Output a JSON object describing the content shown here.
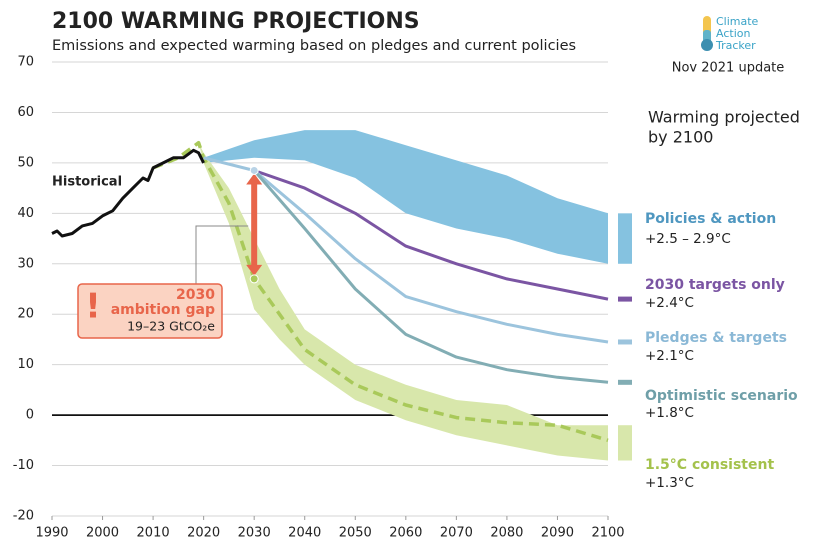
{
  "chart_data": {
    "type": "line",
    "title": "2100 WARMING PROJECTIONS",
    "subtitle": "Emissions and expected warming based on pledges and current policies",
    "logo": [
      "Climate",
      "Action",
      "Tracker"
    ],
    "update": "Nov 2021 update",
    "legend_title": [
      "Warming projected",
      "by 2100"
    ],
    "xlim": [
      1990,
      2100
    ],
    "xticks": [
      1990,
      2000,
      2010,
      2020,
      2030,
      2040,
      2050,
      2060,
      2070,
      2080,
      2090,
      2100
    ],
    "ylim": [
      -20,
      70
    ],
    "yticks": [
      -20,
      -10,
      0,
      10,
      20,
      30,
      40,
      50,
      60,
      70
    ],
    "grid": true,
    "annotation": {
      "year": "2030",
      "label": "ambition gap",
      "range": "19–23 GtCO₂e",
      "icon": "!"
    },
    "series": [
      {
        "name": "Historical",
        "kind": "line",
        "color": "#111111",
        "x": [
          1990,
          1991,
          1992,
          1994,
          1996,
          1998,
          2000,
          2002,
          2004,
          2006,
          2008,
          2009,
          2010,
          2012,
          2014,
          2016,
          2018,
          2019,
          2020
        ],
        "values": [
          36,
          36.5,
          35.5,
          36,
          37.5,
          38,
          39.5,
          40.5,
          43,
          45,
          47,
          46.5,
          49,
          50,
          51,
          51,
          52.5,
          52,
          50
        ]
      },
      {
        "name": "Policies & action",
        "warming": "+2.5 – 2.9°C",
        "kind": "band",
        "color": "#85c2e0",
        "label_color": "#4f97c0",
        "x": [
          2020,
          2030,
          2040,
          2050,
          2060,
          2070,
          2080,
          2090,
          2100
        ],
        "upper": [
          51,
          54.5,
          56.5,
          56.5,
          53.5,
          50.5,
          47.5,
          43,
          40
        ],
        "lower": [
          50,
          51,
          50.5,
          47,
          40,
          37,
          35,
          32,
          30
        ]
      },
      {
        "name": "2030 targets only",
        "warming": "+2.4°C",
        "kind": "line",
        "color": "#7b55a3",
        "label_color": "#7b55a3",
        "x": [
          2030,
          2040,
          2050,
          2060,
          2070,
          2080,
          2090,
          2100
        ],
        "values": [
          48.5,
          45,
          40,
          33.5,
          30,
          27,
          25,
          23
        ]
      },
      {
        "name": "Pledges & targets",
        "warming": "+2.1°C",
        "kind": "line",
        "color": "#9cc4dd",
        "label_color": "#8ab8d6",
        "x": [
          2020,
          2030,
          2040,
          2050,
          2060,
          2070,
          2080,
          2090,
          2100
        ],
        "values": [
          51,
          48.5,
          40,
          31,
          23.5,
          20.5,
          18,
          16,
          14.5
        ]
      },
      {
        "name": "Optimistic scenario",
        "warming": "+1.8°C",
        "kind": "line",
        "color": "#82adb4",
        "label_color": "#6f9fa8",
        "x": [
          2030,
          2040,
          2050,
          2060,
          2070,
          2080,
          2090,
          2100
        ],
        "values": [
          48.5,
          37,
          25,
          16,
          11.5,
          9,
          7.5,
          6.5
        ]
      },
      {
        "name": "1.5°C consistent",
        "warming": "+1.3°C",
        "kind": "dashed-band",
        "color": "#a9c95a",
        "band_color": "#d8e7ab",
        "label_color": "#a4c24c",
        "x": [
          2010,
          2015,
          2019,
          2020,
          2025,
          2030,
          2035,
          2040,
          2050,
          2060,
          2070,
          2080,
          2090,
          2100
        ],
        "values": [
          49,
          51,
          54,
          51,
          42,
          27,
          20,
          13,
          6,
          2,
          -0.5,
          -1.5,
          -2,
          -5
        ],
        "upper": [
          49,
          51,
          54,
          52,
          45,
          35,
          25,
          17,
          10,
          6,
          3,
          2,
          -2,
          -2
        ],
        "lower": [
          49,
          51,
          54,
          50,
          38,
          21,
          15,
          10,
          3,
          -1,
          -4,
          -6,
          -8,
          -9
        ]
      }
    ]
  }
}
